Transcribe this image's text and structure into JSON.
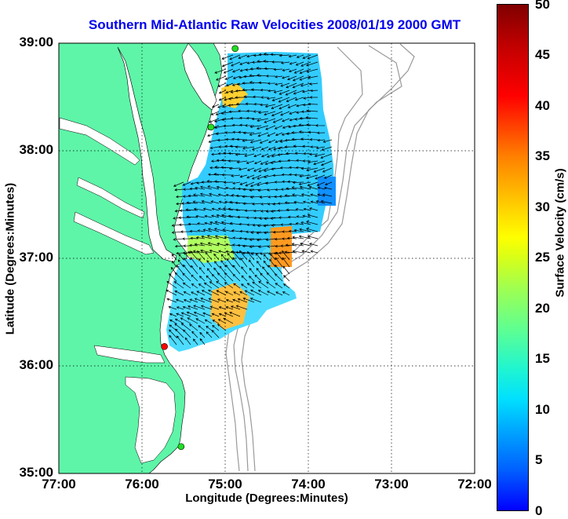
{
  "title": "Southern Mid-Atlantic Raw Velocities 2008/01/19 2000 GMT",
  "x_axis": {
    "label": "Longitude (Degrees:Minutes)",
    "ticks": [
      "77:00",
      "76:00",
      "75:00",
      "74:00",
      "73:00",
      "72:00"
    ],
    "range_deg_west": [
      77,
      72
    ]
  },
  "y_axis": {
    "label": "Latitude (Degrees:Minutes)",
    "ticks": [
      "39:00",
      "38:00",
      "37:00",
      "36:00",
      "35:00"
    ],
    "range_deg_north": [
      35,
      39
    ]
  },
  "colorbar": {
    "label": "Surface Velocity (cm/s)",
    "ticks": [
      "50",
      "45",
      "40",
      "35",
      "30",
      "25",
      "20",
      "15",
      "10",
      "5",
      "0"
    ],
    "range": [
      0,
      50
    ],
    "colormap": "jet"
  },
  "colors": {
    "land": "#5ef5a8",
    "water": "#ffffff",
    "bathymetry": "#999999",
    "title": "#0000ee",
    "site_green": "#22dd22",
    "site_red": "#ff0000"
  },
  "grid": "dotted",
  "radar_sites": [
    {
      "lon": -74.88,
      "lat": 38.95,
      "status": "green"
    },
    {
      "lon": -75.17,
      "lat": 38.22,
      "status": "green"
    },
    {
      "lon": -75.73,
      "lat": 36.18,
      "status": "red"
    },
    {
      "lon": -75.53,
      "lat": 35.25,
      "status": "green"
    }
  ]
}
